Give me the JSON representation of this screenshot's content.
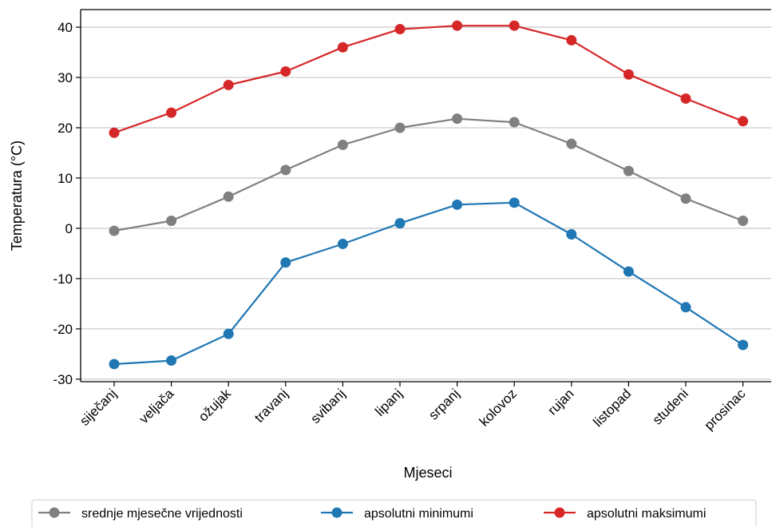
{
  "chart_data": {
    "type": "line",
    "xlabel": "Mjeseci",
    "ylabel": "Temperatura (°C)",
    "ylim": [
      -30.5,
      43.5
    ],
    "yticks": [
      -30,
      -20,
      -10,
      0,
      10,
      20,
      30,
      40
    ],
    "grid": "horizontal",
    "legend_placement": "bottom",
    "categories": [
      "siječanj",
      "veljača",
      "ožujak",
      "travanj",
      "svibanj",
      "lipanj",
      "srpanj",
      "kolovoz",
      "rujan",
      "listopad",
      "studeni",
      "prosinac"
    ],
    "series": [
      {
        "name": "srednje mjesečne vrijednosti",
        "color": "#808080",
        "values": [
          -0.5,
          1.5,
          6.3,
          11.6,
          16.6,
          20.0,
          21.8,
          21.1,
          16.8,
          11.4,
          5.9,
          1.5
        ]
      },
      {
        "name": "apsolutni minimumi",
        "color": "#1f77b4",
        "values": [
          -27.0,
          -26.3,
          -21.0,
          -6.8,
          -3.1,
          1.0,
          4.7,
          5.1,
          -1.2,
          -8.6,
          -15.7,
          -23.2
        ]
      },
      {
        "name": "apsolutni maksimumi",
        "color": "#d62728",
        "values": [
          19.0,
          23.0,
          28.5,
          31.2,
          36.0,
          39.6,
          40.3,
          40.3,
          37.4,
          30.6,
          25.8,
          21.3
        ]
      }
    ]
  }
}
